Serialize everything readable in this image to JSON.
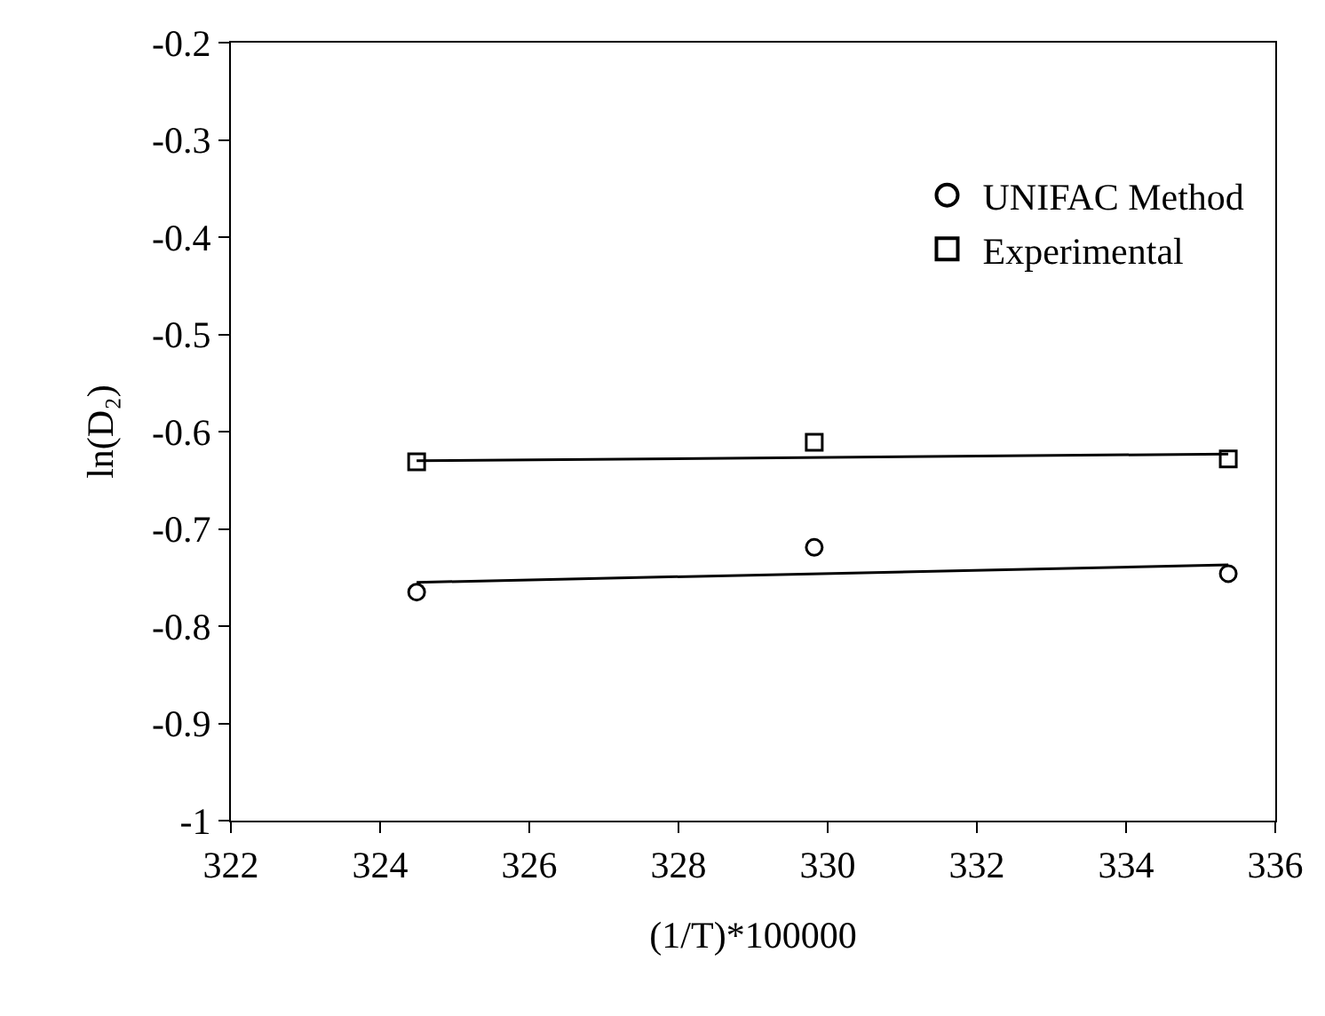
{
  "chart_data": {
    "type": "scatter",
    "xlabel": "(1/T)*100000",
    "ylabel": "ln(D₂)",
    "xlim": [
      322,
      336
    ],
    "xticks": [
      322,
      324,
      326,
      328,
      330,
      332,
      334,
      336
    ],
    "ylim": [
      -1,
      -0.2
    ],
    "yticks": [
      -1,
      -0.9,
      -0.8,
      -0.7,
      -0.6,
      -0.5,
      -0.4,
      -0.3,
      -0.2
    ],
    "legend": "top right",
    "series": [
      {
        "name": "UNIFAC Method",
        "marker": "circle",
        "color": "#000000",
        "x": [
          324.49,
          329.82,
          335.37
        ],
        "values": [
          -0.765,
          -0.719,
          -0.746
        ]
      },
      {
        "name": "Experimental",
        "marker": "square",
        "color": "#000000",
        "x": [
          324.49,
          329.82,
          335.37
        ],
        "values": [
          -0.631,
          -0.611,
          -0.628
        ]
      },
      {
        "type": "line",
        "marker": "none",
        "line_style": "solid",
        "color": "#000000",
        "x": [
          324.49,
          335.37
        ],
        "values": [
          -0.755,
          -0.737
        ]
      },
      {
        "type": "line",
        "marker": "none",
        "line_style": "solid",
        "color": "#000000",
        "x": [
          324.49,
          335.37
        ],
        "values": [
          -0.63,
          -0.623
        ]
      }
    ]
  }
}
